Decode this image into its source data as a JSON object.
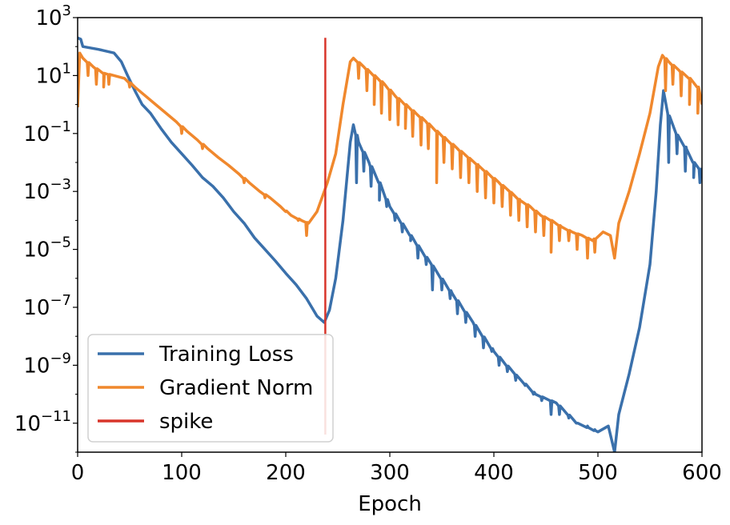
{
  "chart_data": {
    "type": "line",
    "xlabel": "Epoch",
    "ylabel": "",
    "xlim": [
      0,
      600
    ],
    "ylim": [
      1e-12,
      1000
    ],
    "yscale": "log",
    "x_ticks": [
      0,
      100,
      200,
      300,
      400,
      500,
      600
    ],
    "y_ticks": [
      {
        "exp": 3,
        "base": "10",
        "sup": "3"
      },
      {
        "exp": 1,
        "base": "10",
        "sup": "1"
      },
      {
        "exp": -1,
        "base": "10",
        "sup": "−1"
      },
      {
        "exp": -3,
        "base": "10",
        "sup": "−3"
      },
      {
        "exp": -5,
        "base": "10",
        "sup": "−5"
      },
      {
        "exp": -7,
        "base": "10",
        "sup": "−7"
      },
      {
        "exp": -9,
        "base": "10",
        "sup": "−9"
      },
      {
        "exp": -11,
        "base": "10",
        "sup": "−11"
      }
    ],
    "legend_position": "lower-left",
    "series": [
      {
        "name": "Training Loss",
        "color": "#3a70ab",
        "points": [
          [
            0,
            200
          ],
          [
            3,
            180
          ],
          [
            5,
            100
          ],
          [
            20,
            80
          ],
          [
            35,
            60
          ],
          [
            42,
            30
          ],
          [
            48,
            10
          ],
          [
            55,
            3
          ],
          [
            62,
            1
          ],
          [
            70,
            0.5
          ],
          [
            80,
            0.15
          ],
          [
            90,
            0.05
          ],
          [
            100,
            0.02
          ],
          [
            110,
            0.008
          ],
          [
            120,
            0.003
          ],
          [
            130,
            0.0015
          ],
          [
            140,
            0.0006
          ],
          [
            150,
            0.0002
          ],
          [
            160,
            8e-05
          ],
          [
            170,
            2.5e-05
          ],
          [
            180,
            1e-05
          ],
          [
            190,
            4e-06
          ],
          [
            200,
            1.5e-06
          ],
          [
            210,
            6e-07
          ],
          [
            220,
            2e-07
          ],
          [
            230,
            5e-08
          ],
          [
            237,
            3e-08
          ],
          [
            242,
            8e-08
          ],
          [
            248,
            1e-06
          ],
          [
            255,
            0.0001
          ],
          [
            262,
            0.05
          ],
          [
            265,
            0.2
          ],
          [
            270,
            0.05
          ],
          [
            280,
            0.01
          ],
          [
            290,
            0.002
          ],
          [
            300,
            0.0003
          ],
          [
            320,
            3e-05
          ],
          [
            340,
            3e-06
          ],
          [
            360,
            3e-07
          ],
          [
            380,
            3e-08
          ],
          [
            400,
            3e-09
          ],
          [
            420,
            5e-10
          ],
          [
            440,
            1e-10
          ],
          [
            460,
            5e-11
          ],
          [
            480,
            1e-11
          ],
          [
            500,
            5e-12
          ],
          [
            510,
            8e-12
          ],
          [
            516,
            1e-12
          ],
          [
            520,
            2e-11
          ],
          [
            530,
            5e-10
          ],
          [
            540,
            2e-08
          ],
          [
            550,
            3e-06
          ],
          [
            556,
            0.001
          ],
          [
            560,
            0.2
          ],
          [
            563,
            3
          ],
          [
            567,
            0.5
          ],
          [
            575,
            0.1
          ],
          [
            585,
            0.03
          ],
          [
            592,
            0.01
          ],
          [
            600,
            0.005
          ]
        ],
        "dips": [
          [
            268,
            0.002
          ],
          [
            275,
            0.005
          ],
          [
            282,
            0.0015
          ],
          [
            290,
            0.0005
          ],
          [
            297,
            0.0003
          ],
          [
            305,
            0.0001
          ],
          [
            312,
            4e-05
          ],
          [
            320,
            2e-05
          ],
          [
            327,
            5e-06
          ],
          [
            335,
            3e-06
          ],
          [
            341,
            4e-07
          ],
          [
            350,
            4e-07
          ],
          [
            358,
            2e-07
          ],
          [
            365,
            6e-08
          ],
          [
            373,
            3e-08
          ],
          [
            382,
            1e-08
          ],
          [
            390,
            4e-09
          ],
          [
            398,
            3e-09
          ],
          [
            405,
            1e-09
          ],
          [
            413,
            6e-10
          ],
          [
            421,
            3e-10
          ],
          [
            430,
            2e-10
          ],
          [
            438,
            1e-10
          ],
          [
            446,
            6e-11
          ],
          [
            455,
            2e-11
          ],
          [
            463,
            2e-11
          ],
          [
            472,
            1.5e-11
          ],
          [
            480,
            1e-11
          ],
          [
            490,
            8e-12
          ],
          [
            497,
            6e-12
          ],
          [
            568,
            0.01
          ],
          [
            576,
            0.02
          ],
          [
            584,
            0.005
          ],
          [
            592,
            0.003
          ],
          [
            598,
            0.002
          ]
        ]
      },
      {
        "name": "Gradient Norm",
        "color": "#f0882d",
        "points": [
          [
            0,
            0.8
          ],
          [
            2,
            60
          ],
          [
            5,
            40
          ],
          [
            15,
            20
          ],
          [
            25,
            12
          ],
          [
            35,
            10
          ],
          [
            45,
            8
          ],
          [
            55,
            4
          ],
          [
            65,
            2
          ],
          [
            75,
            1
          ],
          [
            85,
            0.5
          ],
          [
            95,
            0.25
          ],
          [
            105,
            0.12
          ],
          [
            115,
            0.06
          ],
          [
            125,
            0.03
          ],
          [
            135,
            0.015
          ],
          [
            145,
            0.008
          ],
          [
            155,
            0.004
          ],
          [
            165,
            0.002
          ],
          [
            175,
            0.001
          ],
          [
            185,
            0.0006
          ],
          [
            195,
            0.0003
          ],
          [
            205,
            0.00015
          ],
          [
            215,
            0.0001
          ],
          [
            222,
            8e-05
          ],
          [
            230,
            0.0002
          ],
          [
            240,
            0.002
          ],
          [
            248,
            0.02
          ],
          [
            255,
            1
          ],
          [
            262,
            30
          ],
          [
            265,
            40
          ],
          [
            275,
            20
          ],
          [
            285,
            10
          ],
          [
            295,
            5
          ],
          [
            305,
            2
          ],
          [
            315,
            1
          ],
          [
            325,
            0.5
          ],
          [
            335,
            0.25
          ],
          [
            345,
            0.12
          ],
          [
            355,
            0.06
          ],
          [
            365,
            0.03
          ],
          [
            375,
            0.015
          ],
          [
            385,
            0.008
          ],
          [
            395,
            0.004
          ],
          [
            405,
            0.002
          ],
          [
            415,
            0.001
          ],
          [
            425,
            0.0005
          ],
          [
            435,
            0.0003
          ],
          [
            445,
            0.00015
          ],
          [
            455,
            0.0001
          ],
          [
            465,
            6e-05
          ],
          [
            475,
            4e-05
          ],
          [
            485,
            3e-05
          ],
          [
            495,
            2e-05
          ],
          [
            505,
            4e-05
          ],
          [
            512,
            3e-05
          ],
          [
            516,
            5e-06
          ],
          [
            520,
            8e-05
          ],
          [
            530,
            0.001
          ],
          [
            540,
            0.02
          ],
          [
            550,
            0.5
          ],
          [
            558,
            20
          ],
          [
            562,
            50
          ],
          [
            568,
            30
          ],
          [
            578,
            15
          ],
          [
            588,
            8
          ],
          [
            596,
            4
          ],
          [
            600,
            1
          ]
        ],
        "dips": [
          [
            10,
            10
          ],
          [
            18,
            5
          ],
          [
            25,
            4
          ],
          [
            30,
            5
          ],
          [
            50,
            4
          ],
          [
            100,
            0.1
          ],
          [
            120,
            0.03
          ],
          [
            160,
            0.002
          ],
          [
            180,
            0.0006
          ],
          [
            200,
            0.0002
          ],
          [
            212,
            0.0001
          ],
          [
            220,
            3e-05
          ],
          [
            270,
            8
          ],
          [
            278,
            3
          ],
          [
            285,
            1
          ],
          [
            292,
            0.5
          ],
          [
            300,
            0.3
          ],
          [
            308,
            0.2
          ],
          [
            315,
            0.15
          ],
          [
            322,
            0.08
          ],
          [
            330,
            0.04
          ],
          [
            337,
            0.03
          ],
          [
            345,
            0.002
          ],
          [
            352,
            0.01
          ],
          [
            360,
            0.006
          ],
          [
            368,
            0.003
          ],
          [
            376,
            0.002
          ],
          [
            384,
            0.001
          ],
          [
            392,
            0.0006
          ],
          [
            400,
            0.0004
          ],
          [
            408,
            0.0003
          ],
          [
            416,
            0.00015
          ],
          [
            424,
            0.0001
          ],
          [
            432,
            6e-05
          ],
          [
            440,
            4e-05
          ],
          [
            448,
            3e-05
          ],
          [
            455,
            8e-06
          ],
          [
            463,
            2e-05
          ],
          [
            472,
            2e-05
          ],
          [
            480,
            1e-05
          ],
          [
            490,
            5e-06
          ],
          [
            497,
            8e-06
          ],
          [
            565,
            3
          ],
          [
            572,
            5
          ],
          [
            580,
            2
          ],
          [
            588,
            1
          ],
          [
            596,
            0.5
          ]
        ]
      },
      {
        "name": "spike",
        "color": "#d8352a",
        "type": "vline",
        "x": 238,
        "y_range": [
          1e-12,
          200
        ]
      }
    ]
  }
}
